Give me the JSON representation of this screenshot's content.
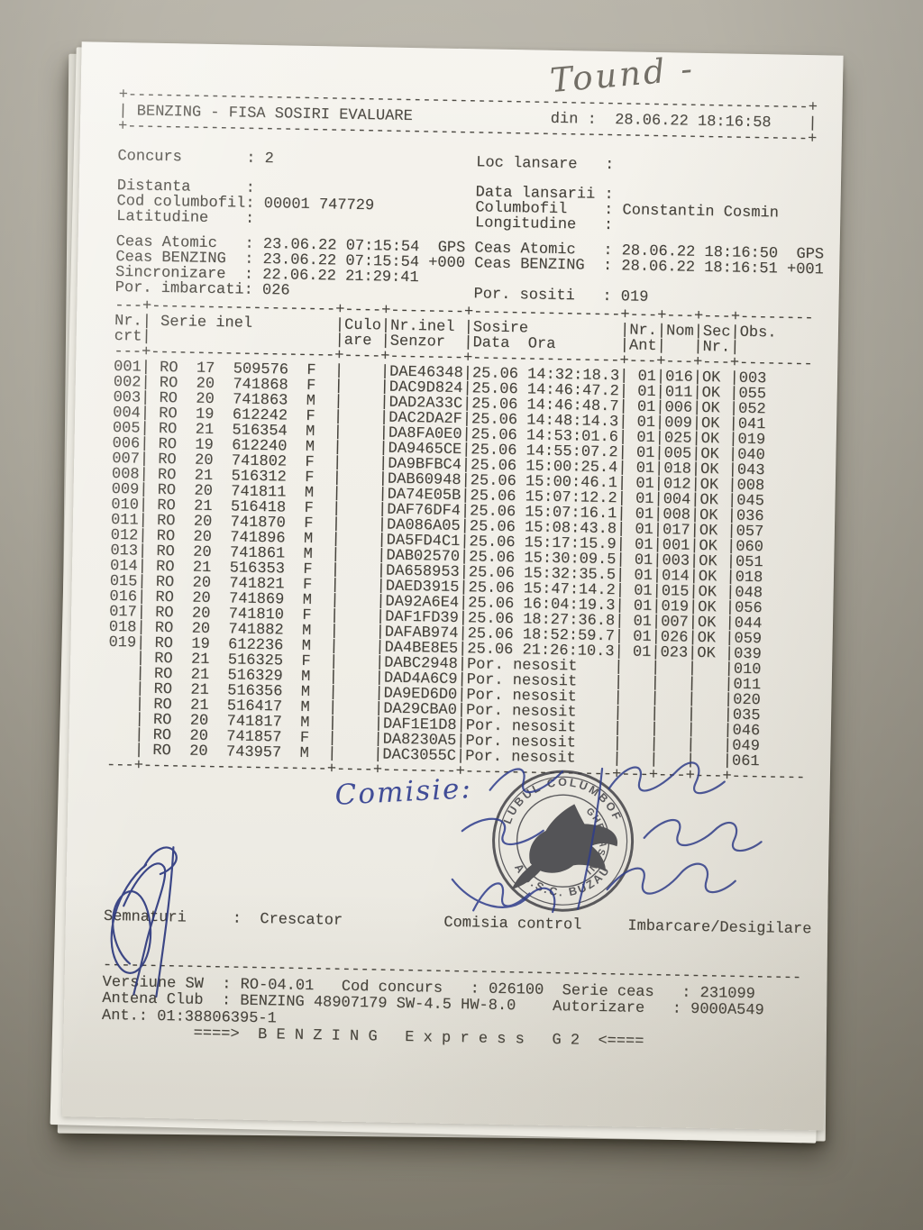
{
  "photo": {
    "background_color": "#a39e91",
    "paper_color": "#f2f0e9",
    "ink_color": "#45423b",
    "pen_color": "#2d3c8e",
    "stamp_color": "#3a3a40"
  },
  "handwriting": {
    "top_note": "Tound -",
    "comisie": "Comisie:"
  },
  "stamp": {
    "outer_top": "CLUBUL COLUMBOFIL",
    "outer_bottom": "A.J.S.C. BUZAU",
    "inner": "GHERASENI"
  },
  "header_box": {
    "border": "+--------------------------------------------------------------------------+",
    "title": "| BENZING - FISA SOSIRI EVALUARE               din :  28.06.22 18:16:58    |"
  },
  "info": {
    "concurs": "Concurs       : 2                      Loc lansare   :",
    "loc1": "Distanta      :                        Data lansarii :",
    "loc2": "Cod columbofil: 00001 747729           Columbofil    : Constantin Cosmin",
    "loc3": "Latitudine    :                        Longitudine   :",
    "ceas1": "Ceas Atomic   : 23.06.22 07:15:54  GPS Ceas Atomic   : 28.06.22 18:16:50  GPS",
    "ceas2": "Ceas BENZING  : 23.06.22 07:15:54 +000 Ceas BENZING  : 28.06.22 18:16:51 +001",
    "ceas3": "Sincronizare  : 22.06.22 21:29:41",
    "ceas4": "Por. imbarcati: 026                    Por. sositi   : 019"
  },
  "table": {
    "border": "---+--------------------+----+--------+----------------+---+---+---+--------",
    "head1": "Nr.| Serie inel         |Culo|Nr.inel |Sosire          |Nr.|Nom|Sec|Obs.",
    "head2": "crt|                    |are |Senzor  |Data  Ora       |Ant|   |Nr.|",
    "rows": [
      {
        "nr": "001",
        "country": "RO",
        "year": "17",
        "ring": "509576",
        "sex": "F",
        "culoare": "",
        "senzor": "DAE46348",
        "sosire": "25.06 14:32:18.3",
        "ant": "01",
        "nom": "016",
        "sec": "OK",
        "obs": "003"
      },
      {
        "nr": "002",
        "country": "RO",
        "year": "20",
        "ring": "741868",
        "sex": "F",
        "culoare": "",
        "senzor": "DAC9D824",
        "sosire": "25.06 14:46:47.2",
        "ant": "01",
        "nom": "011",
        "sec": "OK",
        "obs": "055"
      },
      {
        "nr": "003",
        "country": "RO",
        "year": "20",
        "ring": "741863",
        "sex": "M",
        "culoare": "",
        "senzor": "DAD2A33C",
        "sosire": "25.06 14:46:48.7",
        "ant": "01",
        "nom": "006",
        "sec": "OK",
        "obs": "052"
      },
      {
        "nr": "004",
        "country": "RO",
        "year": "19",
        "ring": "612242",
        "sex": "F",
        "culoare": "",
        "senzor": "DAC2DA2F",
        "sosire": "25.06 14:48:14.3",
        "ant": "01",
        "nom": "009",
        "sec": "OK",
        "obs": "041"
      },
      {
        "nr": "005",
        "country": "RO",
        "year": "21",
        "ring": "516354",
        "sex": "M",
        "culoare": "",
        "senzor": "DA8FA0E0",
        "sosire": "25.06 14:53:01.6",
        "ant": "01",
        "nom": "025",
        "sec": "OK",
        "obs": "019"
      },
      {
        "nr": "006",
        "country": "RO",
        "year": "19",
        "ring": "612240",
        "sex": "M",
        "culoare": "",
        "senzor": "DA9465CE",
        "sosire": "25.06 14:55:07.2",
        "ant": "01",
        "nom": "005",
        "sec": "OK",
        "obs": "040"
      },
      {
        "nr": "007",
        "country": "RO",
        "year": "20",
        "ring": "741802",
        "sex": "F",
        "culoare": "",
        "senzor": "DA9BFBC4",
        "sosire": "25.06 15:00:25.4",
        "ant": "01",
        "nom": "018",
        "sec": "OK",
        "obs": "043"
      },
      {
        "nr": "008",
        "country": "RO",
        "year": "21",
        "ring": "516312",
        "sex": "F",
        "culoare": "",
        "senzor": "DAB60948",
        "sosire": "25.06 15:00:46.1",
        "ant": "01",
        "nom": "012",
        "sec": "OK",
        "obs": "008"
      },
      {
        "nr": "009",
        "country": "RO",
        "year": "20",
        "ring": "741811",
        "sex": "M",
        "culoare": "",
        "senzor": "DA74E05B",
        "sosire": "25.06 15:07:12.2",
        "ant": "01",
        "nom": "004",
        "sec": "OK",
        "obs": "045"
      },
      {
        "nr": "010",
        "country": "RO",
        "year": "21",
        "ring": "516418",
        "sex": "F",
        "culoare": "",
        "senzor": "DAF76DF4",
        "sosire": "25.06 15:07:16.1",
        "ant": "01",
        "nom": "008",
        "sec": "OK",
        "obs": "036"
      },
      {
        "nr": "011",
        "country": "RO",
        "year": "20",
        "ring": "741870",
        "sex": "F",
        "culoare": "",
        "senzor": "DA086A05",
        "sosire": "25.06 15:08:43.8",
        "ant": "01",
        "nom": "017",
        "sec": "OK",
        "obs": "057"
      },
      {
        "nr": "012",
        "country": "RO",
        "year": "20",
        "ring": "741896",
        "sex": "M",
        "culoare": "",
        "senzor": "DA5FD4C1",
        "sosire": "25.06 15:17:15.9",
        "ant": "01",
        "nom": "001",
        "sec": "OK",
        "obs": "060"
      },
      {
        "nr": "013",
        "country": "RO",
        "year": "20",
        "ring": "741861",
        "sex": "M",
        "culoare": "",
        "senzor": "DAB02570",
        "sosire": "25.06 15:30:09.5",
        "ant": "01",
        "nom": "003",
        "sec": "OK",
        "obs": "051"
      },
      {
        "nr": "014",
        "country": "RO",
        "year": "21",
        "ring": "516353",
        "sex": "F",
        "culoare": "",
        "senzor": "DA658953",
        "sosire": "25.06 15:32:35.5",
        "ant": "01",
        "nom": "014",
        "sec": "OK",
        "obs": "018"
      },
      {
        "nr": "015",
        "country": "RO",
        "year": "20",
        "ring": "741821",
        "sex": "F",
        "culoare": "",
        "senzor": "DAED3915",
        "sosire": "25.06 15:47:14.2",
        "ant": "01",
        "nom": "015",
        "sec": "OK",
        "obs": "048"
      },
      {
        "nr": "016",
        "country": "RO",
        "year": "20",
        "ring": "741869",
        "sex": "M",
        "culoare": "",
        "senzor": "DA92A6E4",
        "sosire": "25.06 16:04:19.3",
        "ant": "01",
        "nom": "019",
        "sec": "OK",
        "obs": "056"
      },
      {
        "nr": "017",
        "country": "RO",
        "year": "20",
        "ring": "741810",
        "sex": "F",
        "culoare": "",
        "senzor": "DAF1FD39",
        "sosire": "25.06 18:27:36.8",
        "ant": "01",
        "nom": "007",
        "sec": "OK",
        "obs": "044"
      },
      {
        "nr": "018",
        "country": "RO",
        "year": "20",
        "ring": "741882",
        "sex": "M",
        "culoare": "",
        "senzor": "DAFAB974",
        "sosire": "25.06 18:52:59.7",
        "ant": "01",
        "nom": "026",
        "sec": "OK",
        "obs": "059"
      },
      {
        "nr": "019",
        "country": "RO",
        "year": "19",
        "ring": "612236",
        "sex": "M",
        "culoare": "",
        "senzor": "DA4BE8E5",
        "sosire": "25.06 21:26:10.3",
        "ant": "01",
        "nom": "023",
        "sec": "OK",
        "obs": "039"
      },
      {
        "nr": "",
        "country": "RO",
        "year": "21",
        "ring": "516325",
        "sex": "F",
        "culoare": "",
        "senzor": "DABC2948",
        "sosire": "Por. nesosit",
        "ant": "",
        "nom": "",
        "sec": "",
        "obs": "010"
      },
      {
        "nr": "",
        "country": "RO",
        "year": "21",
        "ring": "516329",
        "sex": "M",
        "culoare": "",
        "senzor": "DAD4A6C9",
        "sosire": "Por. nesosit",
        "ant": "",
        "nom": "",
        "sec": "",
        "obs": "011"
      },
      {
        "nr": "",
        "country": "RO",
        "year": "21",
        "ring": "516356",
        "sex": "M",
        "culoare": "",
        "senzor": "DA9ED6D0",
        "sosire": "Por. nesosit",
        "ant": "",
        "nom": "",
        "sec": "",
        "obs": "020"
      },
      {
        "nr": "",
        "country": "RO",
        "year": "21",
        "ring": "516417",
        "sex": "M",
        "culoare": "",
        "senzor": "DA29CBA0",
        "sosire": "Por. nesosit",
        "ant": "",
        "nom": "",
        "sec": "",
        "obs": "035"
      },
      {
        "nr": "",
        "country": "RO",
        "year": "20",
        "ring": "741817",
        "sex": "M",
        "culoare": "",
        "senzor": "DAF1E1D8",
        "sosire": "Por. nesosit",
        "ant": "",
        "nom": "",
        "sec": "",
        "obs": "046"
      },
      {
        "nr": "",
        "country": "RO",
        "year": "20",
        "ring": "741857",
        "sex": "F",
        "culoare": "",
        "senzor": "DA8230A5",
        "sosire": "Por. nesosit",
        "ant": "",
        "nom": "",
        "sec": "",
        "obs": "049"
      },
      {
        "nr": "",
        "country": "RO",
        "year": "20",
        "ring": "743957",
        "sex": "M",
        "culoare": "",
        "senzor": "DAC3055C",
        "sosire": "Por. nesosit",
        "ant": "",
        "nom": "",
        "sec": "",
        "obs": "061"
      }
    ]
  },
  "signatures": {
    "line": "Semnaturi     :  Crescator           Comisia control     Imbarcare/Desigilare"
  },
  "footer": {
    "separator": "----------------------------------------------------------------------------",
    "line1": "Versiune SW  : RO-04.01   Cod concurs   : 026100  Serie ceas   : 231099",
    "line2": "Antena Club  : BENZING 48907179 SW-4.5 HW-8.0    Autorizare   : 9000A549",
    "line3": "Ant.: 01:38806395-1",
    "line4": "          ====>  B E N Z I N G   E x p r e s s   G 2  <===="
  }
}
